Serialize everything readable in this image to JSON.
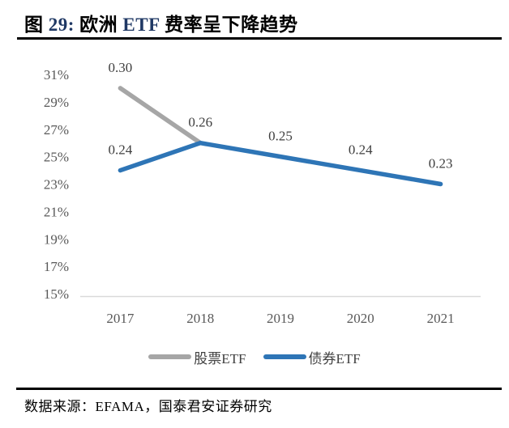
{
  "header": {
    "title": "图 29: 欧洲 ETF 费率呈下降趋势",
    "title_parts": [
      {
        "text": "图 ",
        "accent": false
      },
      {
        "text": "29: ",
        "accent": true
      },
      {
        "text": "欧洲 ",
        "accent": false
      },
      {
        "text": "ETF ",
        "accent": true
      },
      {
        "text": "费率呈下降趋势",
        "accent": false
      }
    ],
    "accent_color": "#1F3864"
  },
  "footer": {
    "source": "数据来源：EFAMA，国泰君安证券研究"
  },
  "chart_data": {
    "type": "line",
    "title": "图 29: 欧洲 ETF 费率呈下降趋势",
    "categories": [
      "2017",
      "2018",
      "2019",
      "2020",
      "2021"
    ],
    "series": [
      {
        "id": "equity-etf",
        "name": "股票ETF",
        "color": "#A6A6A6",
        "values": [
          0.3,
          0.26,
          null,
          null,
          null
        ],
        "point_labels": [
          "0.30",
          "0.26",
          null,
          null,
          null
        ]
      },
      {
        "id": "bond-etf",
        "name": "债券ETF",
        "color": "#2E75B6",
        "values": [
          0.24,
          0.26,
          0.25,
          0.24,
          0.23
        ],
        "point_labels": [
          "0.24",
          null,
          "0.25",
          "0.24",
          "0.23"
        ]
      }
    ],
    "y_axis": {
      "tick_labels": [
        "31%",
        "29%",
        "27%",
        "25%",
        "23%",
        "21%",
        "19%",
        "17%",
        "15%"
      ],
      "min": 0.15,
      "max": 0.31,
      "format": "percent"
    },
    "x_axis": {
      "tick_labels": [
        "2017",
        "2018",
        "2019",
        "2020",
        "2021"
      ]
    },
    "legend": {
      "position": "bottom"
    },
    "grid": false,
    "axis_line_color": "#D9D9D9",
    "tick_color": "#595959",
    "data_label_color": "#3F3F3F"
  }
}
